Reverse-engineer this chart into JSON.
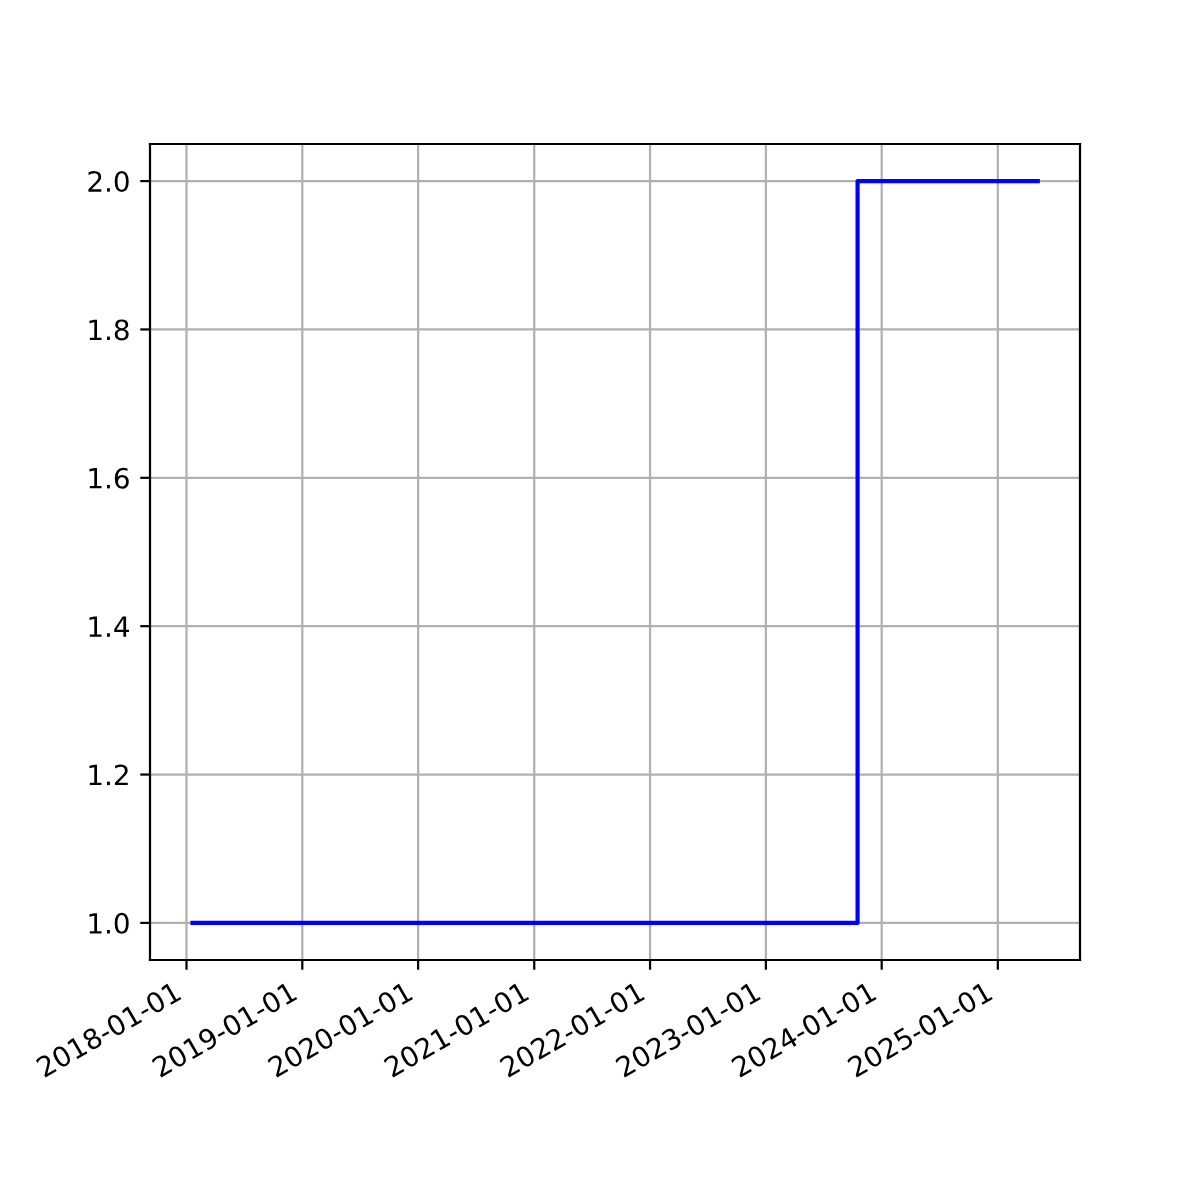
{
  "chart_data": {
    "type": "step",
    "x": [
      "2018-01-20",
      "2023-10-17",
      "2025-05-07"
    ],
    "series": [
      {
        "color": "#0000ff",
        "values": [
          1,
          2,
          2
        ]
      }
    ],
    "xlim": [
      "2017-09-08",
      "2025-09-17"
    ],
    "xticks": [
      {
        "value": "2018-01-01",
        "label": "2018-01-01"
      },
      {
        "value": "2019-01-01",
        "label": "2019-01-01"
      },
      {
        "value": "2020-01-01",
        "label": "2020-01-01"
      },
      {
        "value": "2021-01-01",
        "label": "2021-01-01"
      },
      {
        "value": "2022-01-01",
        "label": "2022-01-01"
      },
      {
        "value": "2023-01-01",
        "label": "2023-01-01"
      },
      {
        "value": "2024-01-01",
        "label": "2024-01-01"
      },
      {
        "value": "2025-01-01",
        "label": "2025-01-01"
      }
    ],
    "ylim": [
      0.95,
      2.05
    ],
    "yticks": [
      {
        "value": 1,
        "label": "1.0"
      },
      {
        "value": 1.2,
        "label": "1.2"
      },
      {
        "value": 1.4,
        "label": "1.4"
      },
      {
        "value": 1.6,
        "label": "1.6"
      },
      {
        "value": 1.8,
        "label": "1.8"
      },
      {
        "value": 2,
        "label": "2.0"
      }
    ],
    "grid": true
  }
}
